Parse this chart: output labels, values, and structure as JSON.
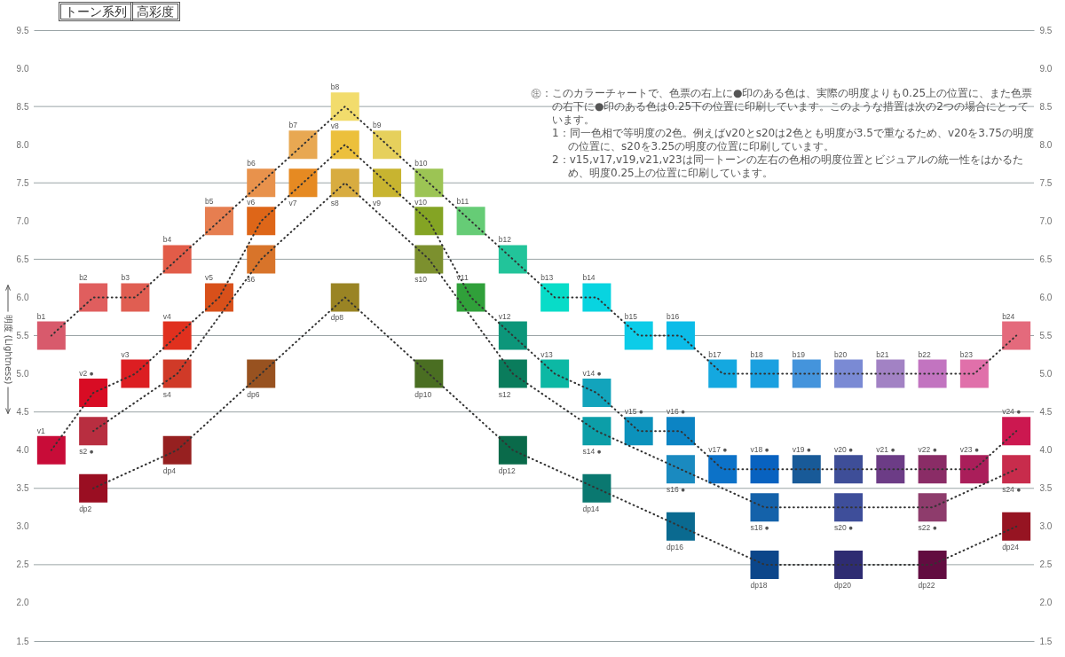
{
  "chart_data": {
    "type": "line",
    "title": "トーン系列",
    "subtitle": "高彩度",
    "ylabel": "明度 (Lightness)",
    "categories": [
      null,
      null,
      null,
      null,
      null,
      null,
      null,
      null,
      null,
      null,
      null,
      null,
      null,
      null,
      null,
      null,
      null,
      null,
      null,
      null,
      null,
      null,
      null,
      null
    ],
    "series": [
      {
        "color": "#333333",
        "values": [
          5.5,
          6.0,
          6.0,
          6.5,
          7.0,
          7.5,
          8.0,
          8.5,
          8.0,
          7.5,
          7.0,
          6.5,
          6.0,
          6.0,
          5.5,
          5.5,
          5.0,
          5.0,
          5.0,
          5.0,
          5.0,
          5.0,
          5.0,
          5.5
        ],
        "colors": [
          "#d85a6c",
          "#e05e5e",
          "#e05e52",
          "#e25c48",
          "#e67e50",
          "#e8924c",
          "#e8a852",
          "#f2dc6c",
          "#e6d05c",
          "#9cc454",
          "#66cc76",
          "#22c49a",
          "#08dcc8",
          "#08d4e0",
          "#0ccce8",
          "#0cbce8",
          "#14a8e0",
          "#1aa0e0",
          "#4494dc",
          "#7a8ad4",
          "#a282c4",
          "#c274c0",
          "#e070aa",
          "#e46a7c"
        ],
        "value_labels": [
          "b1",
          "b2",
          "b3",
          "b4",
          "b5",
          "b6",
          "b7",
          "b8",
          "b9",
          "b10",
          "b11",
          "b12",
          "b13",
          "b14",
          "b15",
          "b16",
          "b17",
          "b18",
          "b19",
          "b20",
          "b21",
          "b22",
          "b23",
          "b24"
        ]
      },
      {
        "color": "#333333",
        "values": [
          4.0,
          4.75,
          5.0,
          5.5,
          6.0,
          7.0,
          7.5,
          8.0,
          7.5,
          7.0,
          6.0,
          5.5,
          5.0,
          4.75,
          4.25,
          4.25,
          3.75,
          3.75,
          3.75,
          3.75,
          3.75,
          3.75,
          3.75,
          4.25
        ],
        "colors": [
          "#c80c38",
          "#d80c24",
          "#dc1e22",
          "#e0301e",
          "#d8501a",
          "#de6618",
          "#e68a22",
          "#ecc03c",
          "#c8b430",
          "#84a424",
          "#30a03a",
          "#0c967a",
          "#0cb8a4",
          "#12a4bc",
          "#0c92bc",
          "#0c84c4",
          "#0c72c8",
          "#0862c0",
          "#185a98",
          "#3e4e98",
          "#6c3c86",
          "#8a2c66",
          "#aa1e5a",
          "#cc1850"
        ],
        "value_labels": [
          "v1",
          "v2 ●",
          "v3",
          "v4",
          "v5",
          "v6",
          "v7",
          "v8",
          "v9",
          "v10",
          "v11",
          "v12",
          "v13",
          "v14 ●",
          "v15 ●",
          "v16 ●",
          "v17 ●",
          "v18 ●",
          "v19 ●",
          "v20 ●",
          "v21 ●",
          "v22 ●",
          "v23 ●",
          "v24 ●"
        ]
      },
      {
        "color": "#333333",
        "values": [
          null,
          4.25,
          null,
          5.0,
          null,
          6.5,
          null,
          7.5,
          null,
          6.5,
          null,
          5.0,
          null,
          4.25,
          null,
          3.75,
          null,
          3.25,
          null,
          3.25,
          null,
          3.25,
          null,
          3.75
        ],
        "colors": [
          null,
          "#b82e40",
          null,
          "#d03a28",
          null,
          "#d8742a",
          null,
          "#d8ac40",
          null,
          "#7c902e",
          null,
          "#0a7c5c",
          null,
          "#0c9ea8",
          null,
          "#1a8ac0",
          null,
          "#1462aa",
          null,
          "#3e4e9a",
          null,
          "#8e3c6c",
          null,
          "#c82c4c"
        ],
        "value_labels": [
          null,
          "s2 ●",
          null,
          "s4",
          null,
          "s6",
          null,
          "s8",
          null,
          "s10",
          null,
          "s12",
          null,
          "s14 ●",
          null,
          "s16 ●",
          null,
          "s18 ●",
          null,
          "s20 ●",
          null,
          "s22 ●",
          null,
          "s24 ●"
        ]
      },
      {
        "color": "#333333",
        "values": [
          null,
          3.5,
          null,
          4.0,
          null,
          5.0,
          null,
          6.0,
          null,
          5.0,
          null,
          4.0,
          null,
          3.5,
          null,
          3.0,
          null,
          2.5,
          null,
          2.5,
          null,
          2.5,
          null,
          3.0
        ],
        "colors": [
          null,
          "#9a0e22",
          null,
          "#962020",
          null,
          "#985220",
          null,
          "#9a8424",
          null,
          "#4a6e22",
          null,
          "#0a6a4a",
          null,
          "#0a7870",
          null,
          "#0a6a90",
          null,
          "#0c468a",
          null,
          "#2e2c72",
          null,
          "#620c40",
          null,
          "#961422"
        ],
        "value_labels": [
          null,
          "dp2",
          null,
          "dp4",
          null,
          "dp6",
          null,
          "dp8",
          null,
          "dp10",
          null,
          "dp12",
          null,
          "dp14",
          null,
          "dp16",
          null,
          "dp18",
          null,
          "dp20",
          null,
          "dp22",
          null,
          "dp24"
        ]
      }
    ],
    "marker": "square",
    "line_style": "dotted",
    "ylim": [
      1.5,
      9.5
    ],
    "yticks": [
      1.5,
      {
        "value": 2,
        "label": "2.0"
      },
      2.5,
      {
        "value": 3,
        "label": "3.0"
      },
      3.5,
      {
        "value": 4,
        "label": "4.0"
      },
      4.5,
      {
        "value": 5,
        "label": "5.0"
      },
      5.5,
      {
        "value": 6,
        "label": "6.0"
      },
      6.5,
      {
        "value": 7,
        "label": "7.0"
      },
      7.5,
      {
        "value": 8,
        "label": "8.0"
      },
      8.5,
      {
        "value": 9,
        "label": "9.0"
      },
      9.5
    ],
    "y2lim": [
      1.5,
      9.5
    ],
    "y2ticks": [
      1.5,
      {
        "value": 2,
        "label": "2.0"
      },
      2.5,
      {
        "value": 3,
        "label": "3.0"
      },
      3.5,
      {
        "value": 4,
        "label": "4.0"
      },
      4.5,
      {
        "value": 5,
        "label": "5.0"
      },
      5.5,
      {
        "value": 6,
        "label": "6.0"
      },
      6.5,
      {
        "value": 7,
        "label": "7.0"
      },
      7.5,
      {
        "value": 8,
        "label": "8.0"
      },
      8.5,
      {
        "value": 9,
        "label": "9.0"
      },
      9.5
    ],
    "ref_lines": [
      {
        "axis": "y",
        "value": 2.5,
        "color": "#9aa4a6"
      },
      {
        "axis": "y",
        "value": 3.5,
        "color": "#9aa4a6"
      },
      {
        "axis": "y",
        "value": 4.5,
        "color": "#9aa4a6"
      },
      {
        "axis": "y",
        "value": 5.5,
        "color": "#9aa4a6"
      },
      {
        "axis": "y",
        "value": 6.5,
        "color": "#9aa4a6"
      },
      {
        "axis": "y",
        "value": 7.5,
        "color": "#9aa4a6"
      },
      {
        "axis": "y",
        "value": 8.5,
        "color": "#9aa4a6"
      }
    ],
    "annotations": [
      "㊟：このカラーチャートで、色票の右上に●印のある色は、実際の明度よりも0.25上の位置に、また色票の右下に●印のある色は0.25下の位置に印刷しています。このような措置は次の2つの場合にとっています。",
      "1：同一色相で等明度の2色。例えばv20とs20は2色とも明度が3.5で重なるため、v20を3.75の明度の位置に、s20を3.25の明度の位置に印刷しています。",
      "2：v15,v17,v19,v21,v23は同一トーンの左右の色相の明度位置とビジュアルの統一性をはかるため、明度0.25上の位置に印刷しています。"
    ]
  }
}
